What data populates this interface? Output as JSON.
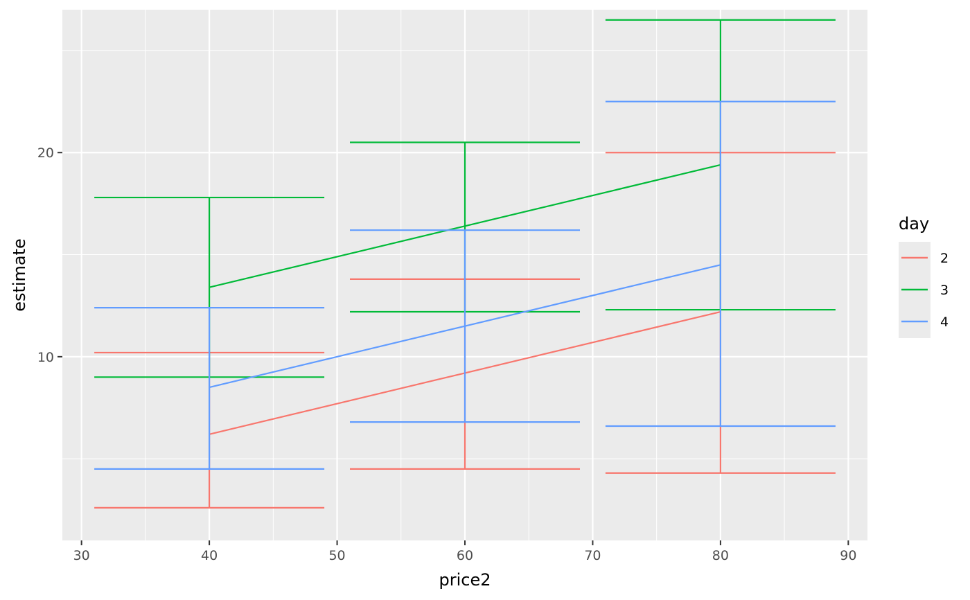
{
  "chart_data": {
    "type": "line",
    "title": "",
    "xlabel": "price2",
    "ylabel": "estimate",
    "xlim": [
      28.5,
      91.5
    ],
    "ylim": [
      1.0,
      27.0
    ],
    "x_ticks": [
      30,
      40,
      50,
      60,
      70,
      80,
      90
    ],
    "x_tick_labels": [
      "30",
      "40",
      "50",
      "60",
      "70",
      "80",
      "90"
    ],
    "y_ticks": [
      10,
      20
    ],
    "y_tick_labels": [
      "10",
      "20"
    ],
    "x_minor_ticks": [
      35,
      45,
      55,
      65,
      75,
      85
    ],
    "y_minor_ticks": [
      5,
      15,
      25
    ],
    "grid": true,
    "panel_background": "#ebebeb",
    "grid_color": "#ffffff",
    "legend": {
      "title": "day",
      "position": "right"
    },
    "x": [
      40,
      60,
      80
    ],
    "errorbar_halfwidth": 9,
    "series": [
      {
        "name": "2",
        "color": "#f8766d",
        "values": [
          6.2,
          9.2,
          12.2
        ],
        "lower": [
          2.6,
          4.5,
          4.3
        ],
        "upper": [
          10.2,
          13.8,
          20.0
        ]
      },
      {
        "name": "3",
        "color": "#00ba38",
        "values": [
          13.4,
          16.4,
          19.4
        ],
        "lower": [
          9.0,
          12.2,
          12.3
        ],
        "upper": [
          17.8,
          20.5,
          26.5
        ]
      },
      {
        "name": "4",
        "color": "#619cff",
        "values": [
          8.5,
          11.5,
          14.5
        ],
        "lower": [
          4.5,
          6.8,
          6.6
        ],
        "upper": [
          12.4,
          16.2,
          22.5
        ]
      }
    ]
  }
}
